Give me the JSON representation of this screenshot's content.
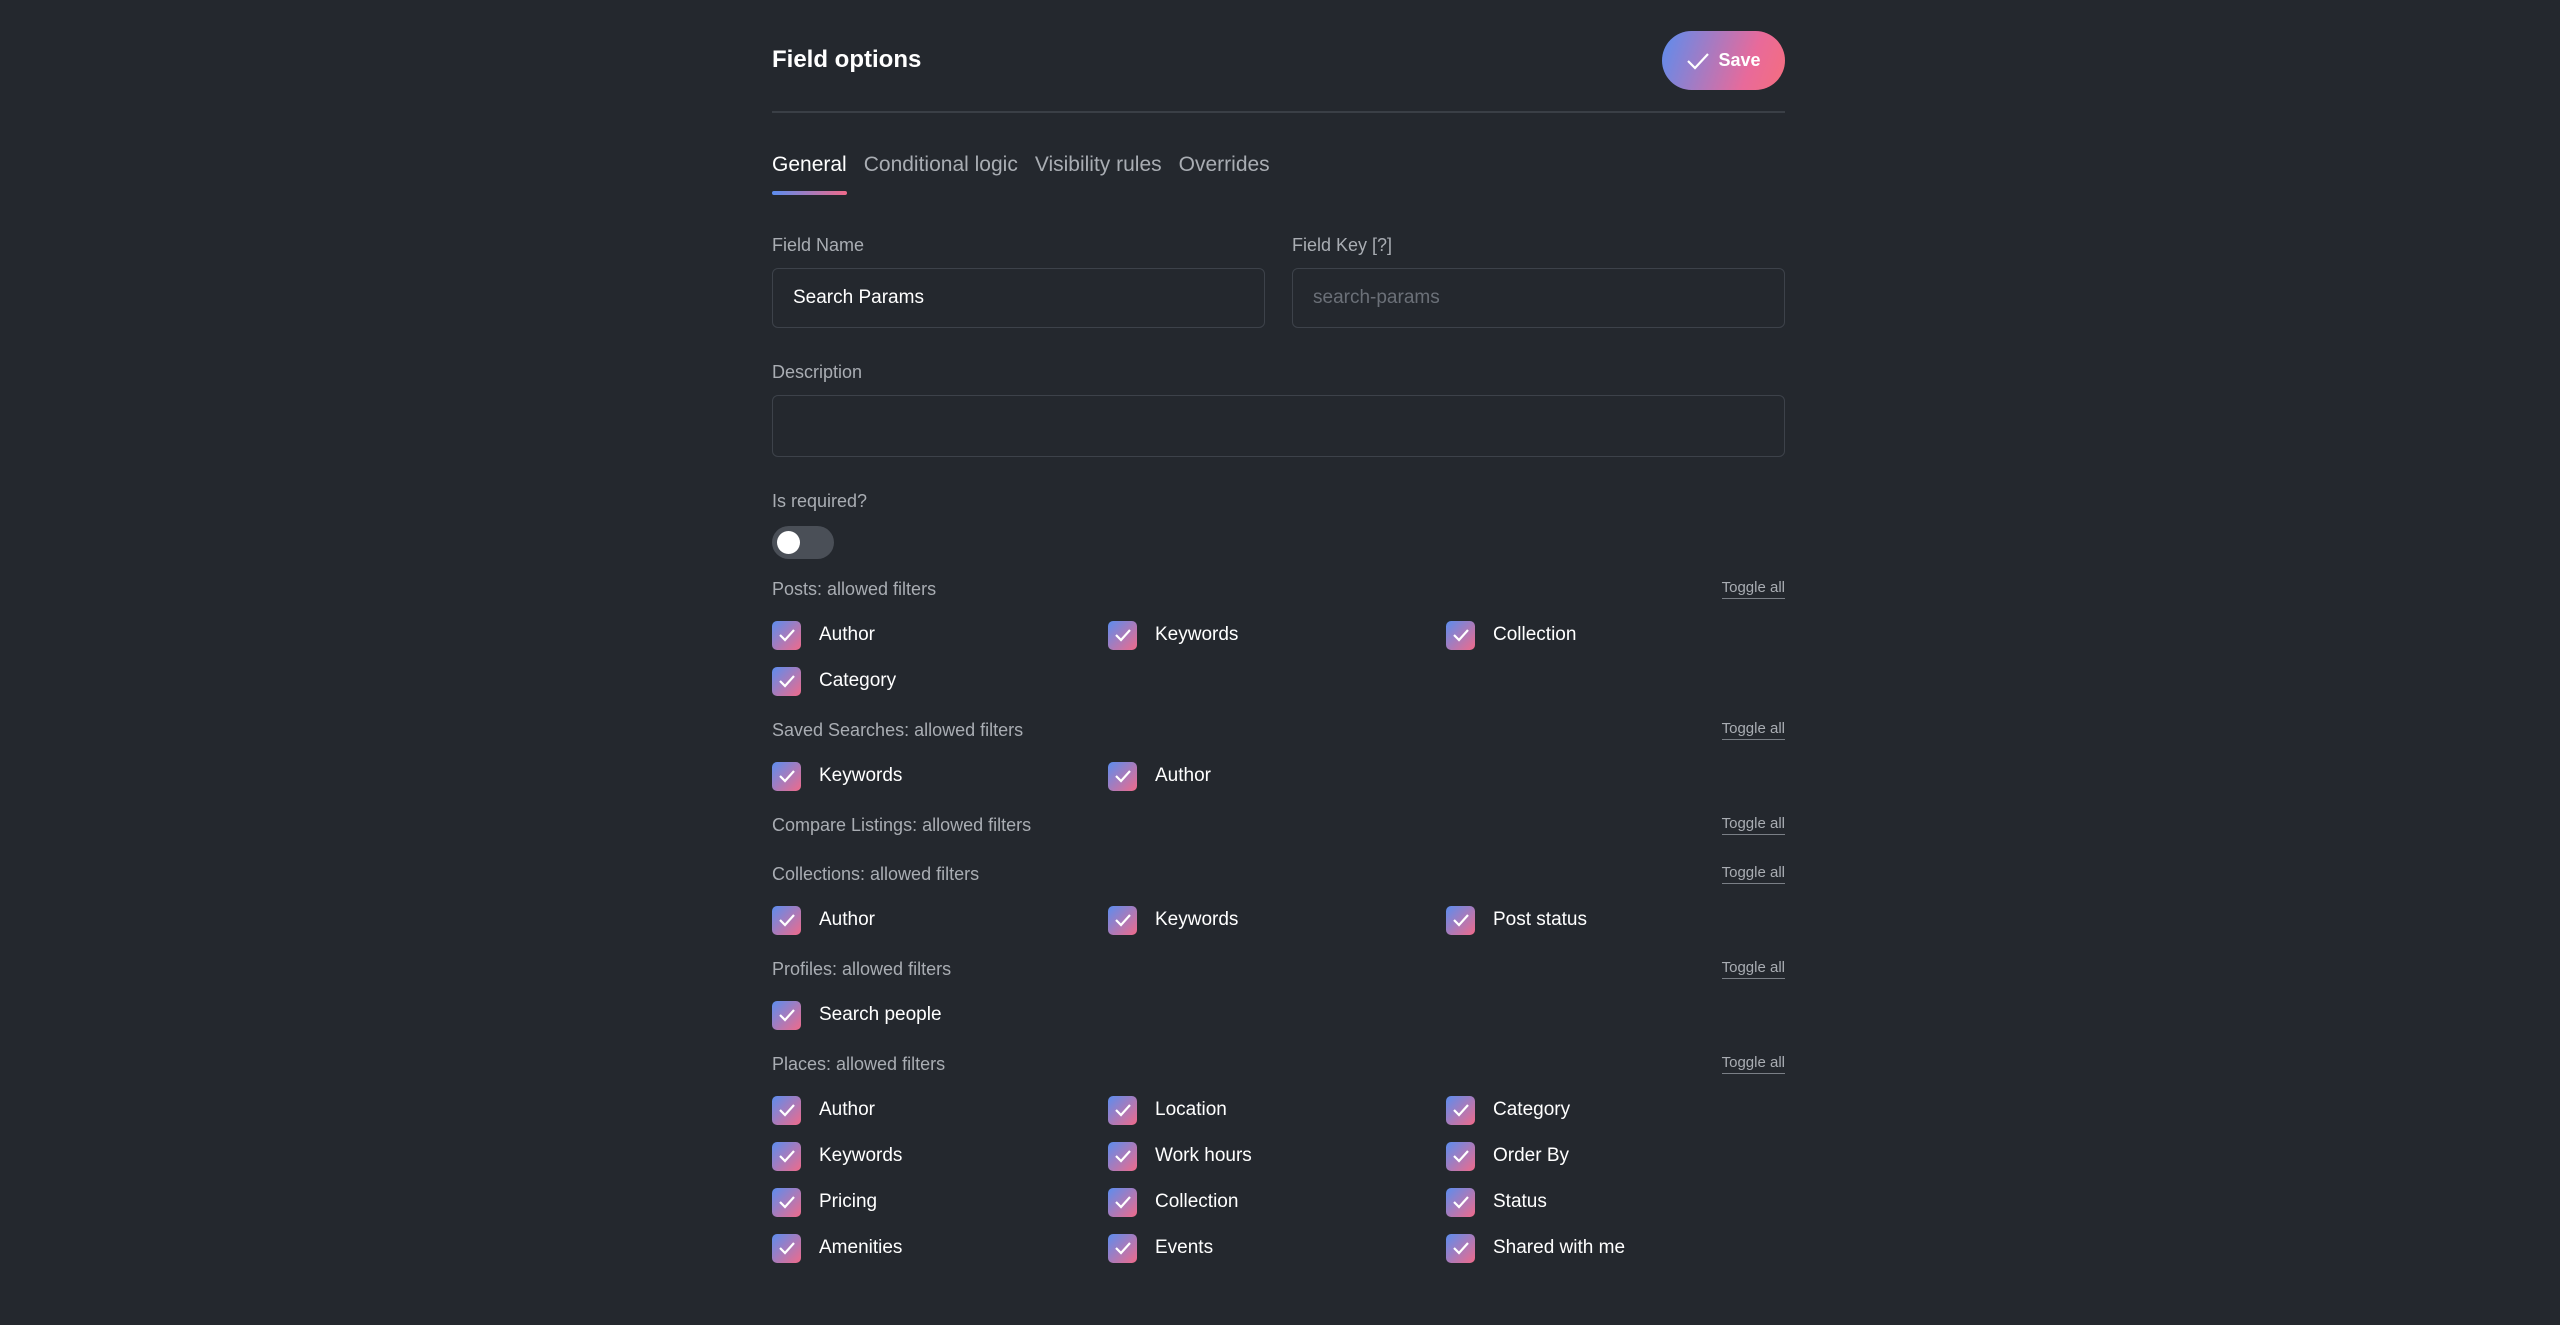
{
  "header": {
    "title": "Field options",
    "save": "Save"
  },
  "tabs": [
    "General",
    "Conditional logic",
    "Visibility rules",
    "Overrides"
  ],
  "fields": {
    "field_name": {
      "label": "Field Name",
      "value": "Search Params"
    },
    "field_key": {
      "label": "Field Key [?]",
      "placeholder": "search-params"
    },
    "description": {
      "label": "Description"
    },
    "required": {
      "label": "Is required?"
    }
  },
  "groups": [
    {
      "title": "Posts: allowed filters",
      "toggle": "Toggle all",
      "options": [
        "Author",
        "Keywords",
        "Collection",
        "Category"
      ]
    },
    {
      "title": "Saved Searches: allowed filters",
      "toggle": "Toggle all",
      "options": [
        "Keywords",
        "Author"
      ]
    },
    {
      "title": "Compare Listings: allowed filters",
      "toggle": "Toggle all",
      "options": []
    },
    {
      "title": "Collections: allowed filters",
      "toggle": "Toggle all",
      "options": [
        "Author",
        "Keywords",
        "Post status"
      ]
    },
    {
      "title": "Profiles: allowed filters",
      "toggle": "Toggle all",
      "options": [
        "Search people"
      ]
    },
    {
      "title": "Places: allowed filters",
      "toggle": "Toggle all",
      "options": [
        "Author",
        "Location",
        "Category",
        "Keywords",
        "Work hours",
        "Order By",
        "Pricing",
        "Collection",
        "Status",
        "Amenities",
        "Events",
        "Shared with me"
      ]
    }
  ]
}
